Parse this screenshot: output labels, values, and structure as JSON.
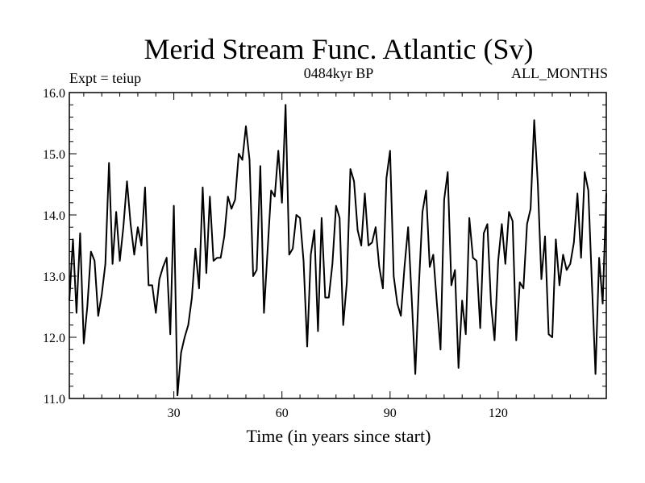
{
  "chart_data": {
    "type": "line",
    "title": "Merid Stream Func. Atlantic (Sv)",
    "subtitle_left": "Expt = teiup",
    "subtitle_center": "0484kyr BP",
    "subtitle_right": "ALL_MONTHS",
    "xlabel": "Time (in years since start)",
    "ylabel": "",
    "xlim": [
      1,
      150
    ],
    "ylim": [
      11.0,
      16.0
    ],
    "grid": false,
    "x_ticks": [
      30,
      60,
      90,
      120
    ],
    "x_tick_labels": [
      "30",
      "60",
      "90",
      "120"
    ],
    "y_ticks": [
      11.0,
      12.0,
      13.0,
      14.0,
      15.0,
      16.0
    ],
    "y_tick_labels": [
      "11.0",
      "12.0",
      "13.0",
      "14.0",
      "15.0",
      "16.0"
    ],
    "series": [
      {
        "name": "Merid Stream Func. Atlantic",
        "color": "#000000",
        "x": [
          1,
          2,
          3,
          4,
          5,
          6,
          7,
          8,
          9,
          10,
          11,
          12,
          13,
          14,
          15,
          16,
          17,
          18,
          19,
          20,
          21,
          22,
          23,
          24,
          25,
          26,
          27,
          28,
          29,
          30,
          31,
          32,
          33,
          34,
          35,
          36,
          37,
          38,
          39,
          40,
          41,
          42,
          43,
          44,
          45,
          46,
          47,
          48,
          49,
          50,
          51,
          52,
          53,
          54,
          55,
          56,
          57,
          58,
          59,
          60,
          61,
          62,
          63,
          64,
          65,
          66,
          67,
          68,
          69,
          70,
          71,
          72,
          73,
          74,
          75,
          76,
          77,
          78,
          79,
          80,
          81,
          82,
          83,
          84,
          85,
          86,
          87,
          88,
          89,
          90,
          91,
          92,
          93,
          94,
          95,
          96,
          97,
          98,
          99,
          100,
          101,
          102,
          103,
          104,
          105,
          106,
          107,
          108,
          109,
          110,
          111,
          112,
          113,
          114,
          115,
          116,
          117,
          118,
          119,
          120,
          121,
          122,
          123,
          124,
          125,
          126,
          127,
          128,
          129,
          130,
          131,
          132,
          133,
          134,
          135,
          136,
          137,
          138,
          139,
          140,
          141,
          142,
          143,
          144,
          145,
          146,
          147,
          148,
          149,
          150
        ],
        "values": [
          12.6,
          13.6,
          12.4,
          13.7,
          11.9,
          12.5,
          13.4,
          13.25,
          12.35,
          12.7,
          13.2,
          14.85,
          13.2,
          14.05,
          13.25,
          13.8,
          14.55,
          13.85,
          13.35,
          13.8,
          13.5,
          14.45,
          12.85,
          12.85,
          12.4,
          12.95,
          13.15,
          13.3,
          12.05,
          14.15,
          11.05,
          11.75,
          12.0,
          12.2,
          12.65,
          13.45,
          12.8,
          14.45,
          13.05,
          14.3,
          13.25,
          13.3,
          13.3,
          13.65,
          14.3,
          14.1,
          14.25,
          15.0,
          14.9,
          15.45,
          14.9,
          13.0,
          13.1,
          14.8,
          12.4,
          13.4,
          14.4,
          14.3,
          15.05,
          14.2,
          15.8,
          13.35,
          13.45,
          14.0,
          13.95,
          13.25,
          11.85,
          13.35,
          13.75,
          12.1,
          13.95,
          12.65,
          12.65,
          13.2,
          14.15,
          13.95,
          12.2,
          12.9,
          14.75,
          14.55,
          13.75,
          13.5,
          14.35,
          13.5,
          13.55,
          13.8,
          13.15,
          12.8,
          14.6,
          15.05,
          13.0,
          12.55,
          12.35,
          13.15,
          13.8,
          12.65,
          11.4,
          12.85,
          14.05,
          14.4,
          13.15,
          13.35,
          12.55,
          11.8,
          14.25,
          14.7,
          12.85,
          13.1,
          11.5,
          12.6,
          12.05,
          13.95,
          13.3,
          13.25,
          12.15,
          13.7,
          13.85,
          12.55,
          11.95,
          13.25,
          13.85,
          13.2,
          14.05,
          13.9,
          11.95,
          12.9,
          12.8,
          13.85,
          14.1,
          15.55,
          14.5,
          12.95,
          13.65,
          12.05,
          12.0,
          13.6,
          12.85,
          13.35,
          13.1,
          13.2,
          13.55,
          14.35,
          13.3,
          14.7,
          14.4,
          12.9,
          11.4,
          13.3,
          12.55,
          14.35
        ]
      }
    ]
  }
}
